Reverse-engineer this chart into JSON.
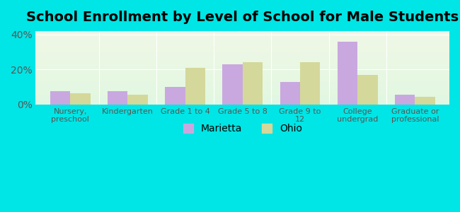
{
  "title": "School Enrollment by Level of School for Male Students",
  "categories": [
    "Nursery,\npreschool",
    "Kindergarten",
    "Grade 1 to 4",
    "Grade 5 to 8",
    "Grade 9 to\n12",
    "College\nundergrad",
    "Graduate or\nprofessional"
  ],
  "marietta": [
    7.5,
    7.5,
    10.0,
    23.0,
    13.0,
    36.0,
    5.5
  ],
  "ohio": [
    6.5,
    5.5,
    21.0,
    24.0,
    24.0,
    17.0,
    4.5
  ],
  "marietta_color": "#c9a8e0",
  "ohio_color": "#d4d89a",
  "background_outer": "#00e5e5",
  "ylim": [
    0,
    42
  ],
  "yticks": [
    0,
    20,
    40
  ],
  "ytick_labels": [
    "0%",
    "20%",
    "40%"
  ],
  "title_fontsize": 14,
  "legend_marietta": "Marietta",
  "legend_ohio": "Ohio",
  "bar_width": 0.35
}
